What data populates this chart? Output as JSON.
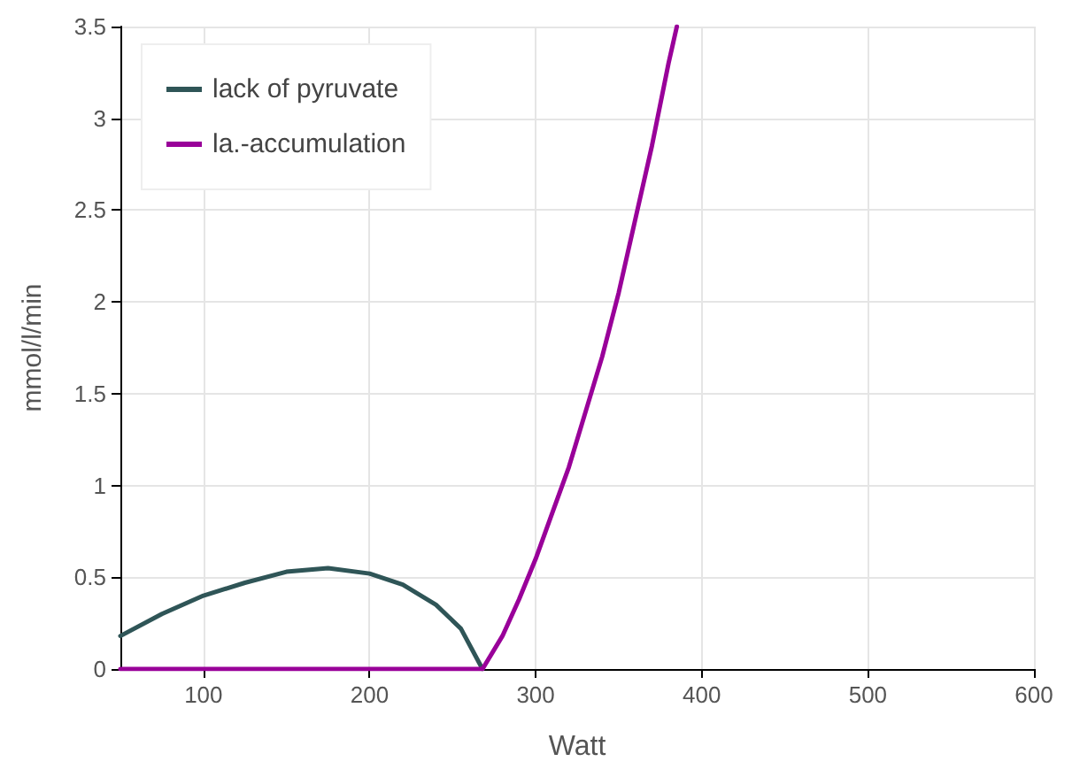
{
  "chart_data": {
    "type": "line",
    "xlabel": "Watt",
    "ylabel": "mmol/l/min",
    "xlim": [
      50,
      600
    ],
    "xticks": [
      100,
      200,
      300,
      400,
      500,
      600
    ],
    "ylim": [
      0,
      3.5
    ],
    "yticks": [
      0,
      0.5,
      1,
      1.5,
      2,
      2.5,
      3,
      3.5
    ],
    "grid": true,
    "legend": "top left",
    "marker": "none",
    "line_style": "solid",
    "series": [
      {
        "name": "lack of pyruvate",
        "color": "#2f5557",
        "x": [
          50,
          75,
          100,
          125,
          150,
          175,
          200,
          220,
          240,
          255,
          268
        ],
        "values": [
          0.18,
          0.3,
          0.4,
          0.47,
          0.53,
          0.55,
          0.52,
          0.46,
          0.35,
          0.22,
          0
        ]
      },
      {
        "name": "la.-accumulation",
        "color": "#990099",
        "x": [
          50,
          268,
          280,
          290,
          300,
          310,
          320,
          330,
          340,
          350,
          360,
          370,
          380,
          385
        ],
        "values": [
          0,
          0,
          0.18,
          0.38,
          0.6,
          0.85,
          1.1,
          1.4,
          1.7,
          2.05,
          2.45,
          2.85,
          3.3,
          3.5
        ]
      }
    ]
  }
}
